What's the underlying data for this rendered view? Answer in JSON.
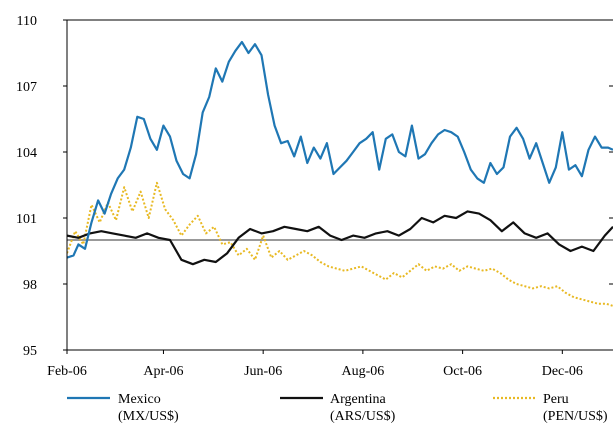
{
  "chart_data": {
    "type": "line",
    "title": "",
    "xlabel": "",
    "ylabel": "",
    "x_range": [
      "2006-02-01",
      "2007-01-01"
    ],
    "ylim": [
      95,
      110
    ],
    "yticks": [
      95,
      98,
      101,
      104,
      107,
      110
    ],
    "ytick_labels": [
      "95",
      "98",
      "101",
      "104",
      "107",
      "110"
    ],
    "xticks": [
      "2006-02-01",
      "2006-04-01",
      "2006-06-01",
      "2006-08-01",
      "2006-10-01",
      "2006-12-01"
    ],
    "xtick_labels": [
      "Feb-06",
      "Apr-06",
      "Jun-06",
      "Aug-06",
      "Oct-06",
      "Dec-06"
    ],
    "reference_line": {
      "y": 100,
      "color": "#999999"
    },
    "grid": false,
    "legend_position": "bottom",
    "series": [
      {
        "name": "Mexico",
        "name_line2": "(MX/US$)",
        "color": "#1f77b4",
        "style": "solid",
        "x": [
          "2006-02-01",
          "2006-02-05",
          "2006-02-08",
          "2006-02-12",
          "2006-02-16",
          "2006-02-20",
          "2006-02-24",
          "2006-02-28",
          "2006-03-04",
          "2006-03-08",
          "2006-03-12",
          "2006-03-16",
          "2006-03-20",
          "2006-03-24",
          "2006-03-28",
          "2006-04-01",
          "2006-04-05",
          "2006-04-09",
          "2006-04-13",
          "2006-04-17",
          "2006-04-21",
          "2006-04-25",
          "2006-04-29",
          "2006-05-03",
          "2006-05-07",
          "2006-05-11",
          "2006-05-15",
          "2006-05-19",
          "2006-05-23",
          "2006-05-27",
          "2006-05-31",
          "2006-06-04",
          "2006-06-08",
          "2006-06-12",
          "2006-06-16",
          "2006-06-20",
          "2006-06-24",
          "2006-06-28",
          "2006-07-02",
          "2006-07-06",
          "2006-07-10",
          "2006-07-14",
          "2006-07-18",
          "2006-07-22",
          "2006-07-26",
          "2006-07-30",
          "2006-08-03",
          "2006-08-07",
          "2006-08-11",
          "2006-08-15",
          "2006-08-19",
          "2006-08-23",
          "2006-08-27",
          "2006-08-31",
          "2006-09-04",
          "2006-09-08",
          "2006-09-12",
          "2006-09-16",
          "2006-09-20",
          "2006-09-24",
          "2006-09-28",
          "2006-10-02",
          "2006-10-06",
          "2006-10-10",
          "2006-10-14",
          "2006-10-18",
          "2006-10-22",
          "2006-10-26",
          "2006-10-30",
          "2006-11-03",
          "2006-11-07",
          "2006-11-11",
          "2006-11-15",
          "2006-11-19",
          "2006-11-23",
          "2006-11-27",
          "2006-12-01",
          "2006-12-05",
          "2006-12-09",
          "2006-12-13",
          "2006-12-17",
          "2006-12-21",
          "2006-12-25",
          "2006-12-29",
          "2007-01-01"
        ],
        "values": [
          99.2,
          99.3,
          99.8,
          99.6,
          100.8,
          101.8,
          101.2,
          102.1,
          102.8,
          103.2,
          104.2,
          105.6,
          105.5,
          104.6,
          104.1,
          105.2,
          104.7,
          103.6,
          103.0,
          102.8,
          103.9,
          105.8,
          106.5,
          107.8,
          107.2,
          108.1,
          108.6,
          109.0,
          108.5,
          108.9,
          108.4,
          106.6,
          105.2,
          104.4,
          104.5,
          103.8,
          104.7,
          103.5,
          104.2,
          103.7,
          104.4,
          103.0,
          103.3,
          103.6,
          104.0,
          104.4,
          104.6,
          104.9,
          103.2,
          104.6,
          104.8,
          104.0,
          103.8,
          105.2,
          103.7,
          103.9,
          104.4,
          104.8,
          105.0,
          104.9,
          104.7,
          104.0,
          103.2,
          102.8,
          102.6,
          103.5,
          103.0,
          103.3,
          104.7,
          105.1,
          104.6,
          103.7,
          104.4,
          103.5,
          102.6,
          103.3,
          104.9,
          103.2,
          103.4,
          102.9,
          104.1,
          104.7,
          104.2,
          104.2,
          104.1
        ]
      },
      {
        "name": "Argentina",
        "name_line2": "(ARS/US$)",
        "color": "#111111",
        "style": "solid",
        "x": [
          "2006-02-01",
          "2006-02-08",
          "2006-02-15",
          "2006-02-22",
          "2006-03-01",
          "2006-03-08",
          "2006-03-15",
          "2006-03-22",
          "2006-03-29",
          "2006-04-05",
          "2006-04-12",
          "2006-04-19",
          "2006-04-26",
          "2006-05-03",
          "2006-05-10",
          "2006-05-17",
          "2006-05-24",
          "2006-05-31",
          "2006-06-07",
          "2006-06-14",
          "2006-06-21",
          "2006-06-28",
          "2006-07-05",
          "2006-07-12",
          "2006-07-19",
          "2006-07-26",
          "2006-08-02",
          "2006-08-09",
          "2006-08-16",
          "2006-08-23",
          "2006-08-30",
          "2006-09-06",
          "2006-09-13",
          "2006-09-20",
          "2006-09-27",
          "2006-10-04",
          "2006-10-11",
          "2006-10-18",
          "2006-10-25",
          "2006-11-01",
          "2006-11-08",
          "2006-11-15",
          "2006-11-22",
          "2006-11-29",
          "2006-12-06",
          "2006-12-13",
          "2006-12-20",
          "2006-12-27",
          "2007-01-01"
        ],
        "values": [
          100.2,
          100.1,
          100.3,
          100.4,
          100.3,
          100.2,
          100.1,
          100.3,
          100.1,
          100.0,
          99.1,
          98.9,
          99.1,
          99.0,
          99.4,
          100.1,
          100.5,
          100.3,
          100.4,
          100.6,
          100.5,
          100.4,
          100.6,
          100.2,
          100.0,
          100.2,
          100.1,
          100.3,
          100.4,
          100.2,
          100.5,
          101.0,
          100.8,
          101.1,
          101.0,
          101.3,
          101.2,
          100.9,
          100.4,
          100.8,
          100.3,
          100.1,
          100.3,
          99.8,
          99.5,
          99.7,
          99.5,
          100.2,
          100.6
        ]
      },
      {
        "name": "Peru",
        "name_line2": "(PEN/US$)",
        "color": "#e8b923",
        "style": "dotted",
        "x": [
          "2006-02-01",
          "2006-02-06",
          "2006-02-11",
          "2006-02-16",
          "2006-02-21",
          "2006-02-26",
          "2006-03-03",
          "2006-03-08",
          "2006-03-13",
          "2006-03-18",
          "2006-03-23",
          "2006-03-28",
          "2006-04-02",
          "2006-04-07",
          "2006-04-12",
          "2006-04-17",
          "2006-04-22",
          "2006-04-27",
          "2006-05-02",
          "2006-05-07",
          "2006-05-12",
          "2006-05-17",
          "2006-05-22",
          "2006-05-27",
          "2006-06-01",
          "2006-06-06",
          "2006-06-11",
          "2006-06-16",
          "2006-06-21",
          "2006-06-26",
          "2006-07-01",
          "2006-07-06",
          "2006-07-11",
          "2006-07-16",
          "2006-07-21",
          "2006-07-26",
          "2006-07-31",
          "2006-08-05",
          "2006-08-10",
          "2006-08-15",
          "2006-08-20",
          "2006-08-25",
          "2006-08-30",
          "2006-09-04",
          "2006-09-09",
          "2006-09-14",
          "2006-09-19",
          "2006-09-24",
          "2006-09-29",
          "2006-10-04",
          "2006-10-09",
          "2006-10-14",
          "2006-10-19",
          "2006-10-24",
          "2006-10-29",
          "2006-11-03",
          "2006-11-08",
          "2006-11-13",
          "2006-11-18",
          "2006-11-23",
          "2006-11-28",
          "2006-12-03",
          "2006-12-08",
          "2006-12-13",
          "2006-12-18",
          "2006-12-23",
          "2006-12-28",
          "2007-01-01"
        ],
        "values": [
          99.4,
          100.4,
          99.8,
          101.6,
          100.8,
          101.7,
          100.9,
          102.4,
          101.3,
          102.2,
          101.0,
          102.6,
          101.4,
          100.9,
          100.2,
          100.7,
          101.1,
          100.3,
          100.6,
          99.8,
          99.9,
          99.3,
          99.6,
          99.1,
          100.2,
          99.2,
          99.5,
          99.1,
          99.3,
          99.5,
          99.3,
          99.0,
          98.8,
          98.7,
          98.6,
          98.7,
          98.8,
          98.6,
          98.4,
          98.2,
          98.5,
          98.3,
          98.6,
          98.9,
          98.6,
          98.8,
          98.7,
          98.9,
          98.6,
          98.8,
          98.7,
          98.6,
          98.7,
          98.5,
          98.2,
          98.0,
          97.9,
          97.8,
          97.9,
          97.8,
          97.9,
          97.6,
          97.4,
          97.3,
          97.2,
          97.1,
          97.1,
          97.0
        ]
      }
    ]
  }
}
